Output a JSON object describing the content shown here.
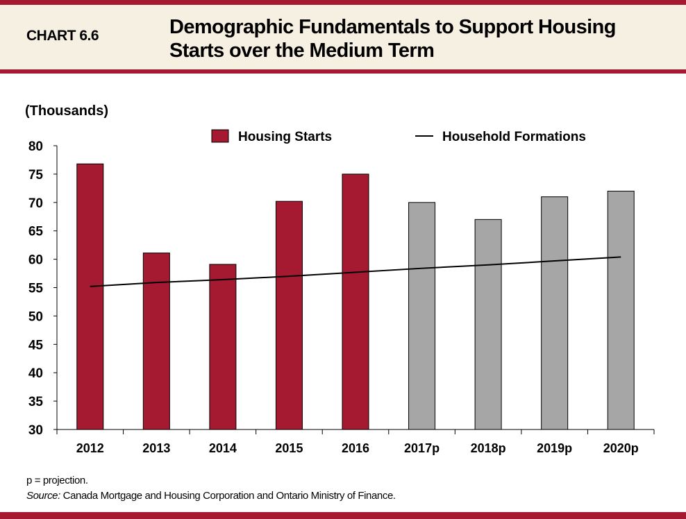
{
  "header": {
    "chart_number": "CHART 6.6",
    "title": "Demographic Fundamentals to Support Housing Starts over the Medium Term"
  },
  "chart_data": {
    "type": "bar",
    "ylabel": "(Thousands)",
    "ylim": [
      30,
      80
    ],
    "yticks": [
      30,
      35,
      40,
      45,
      50,
      55,
      60,
      65,
      70,
      75,
      80
    ],
    "categories": [
      "2012",
      "2013",
      "2014",
      "2015",
      "2016",
      "2017p",
      "2018p",
      "2019p",
      "2020p"
    ],
    "legend_placement": "top",
    "grid": false,
    "series": [
      {
        "name": "Housing Starts",
        "type": "bar",
        "values": [
          76.8,
          61.1,
          59.1,
          70.2,
          75.0,
          70.0,
          67.0,
          71.0,
          72.0
        ],
        "color": "#a51931",
        "projection_color": "#a6a6a6"
      },
      {
        "name": "Household Formations",
        "type": "line",
        "values": [
          55.2,
          55.9,
          56.4,
          57.0,
          57.7,
          58.4,
          59.0,
          59.7,
          60.4
        ],
        "color": "#000000"
      }
    ]
  },
  "notes": {
    "projection": "p = projection.",
    "source_label": "Source:",
    "source_text": " Canada Mortgage and Housing Corporation and Ontario Ministry of Finance."
  }
}
